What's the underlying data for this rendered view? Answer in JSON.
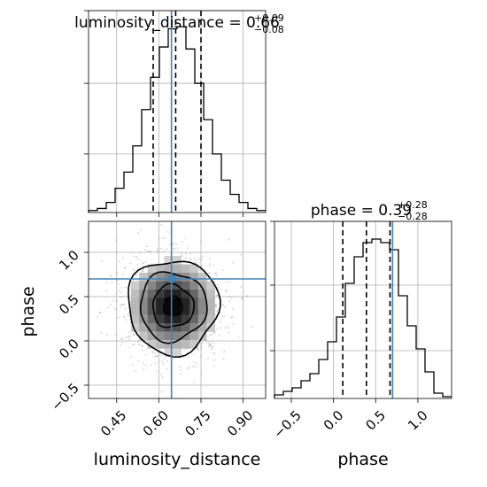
{
  "chart_data": {
    "type": "corner",
    "parameters": [
      "luminosity_distance",
      "phase"
    ],
    "truth_color": "#4682b4",
    "truths": {
      "luminosity_distance": 0.645,
      "phase": 0.7
    },
    "panels": [
      {
        "id": "lum-hist",
        "type": "histogram",
        "title_name": "luminosity_distance",
        "title_value": "0.66",
        "title_plus": "+0.09",
        "title_minus": "−0.08",
        "xlim": [
          0.35,
          0.98
        ],
        "ylim": [
          0,
          1
        ],
        "x_ticks": [
          0.45,
          0.6,
          0.75,
          0.9
        ],
        "y_ticks": [
          0.29,
          0.64,
          1.0
        ],
        "quantiles": [
          0.58,
          0.66,
          0.75
        ],
        "truth": 0.645,
        "bin_edges": [
          0.35,
          0.3815,
          0.413,
          0.4445,
          0.476,
          0.5075,
          0.539,
          0.5705,
          0.602,
          0.6335,
          0.665,
          0.6965,
          0.728,
          0.7595,
          0.791,
          0.8225,
          0.854,
          0.8855,
          0.917,
          0.9485,
          0.98
        ],
        "counts": [
          0.01,
          0.02,
          0.05,
          0.12,
          0.2,
          0.33,
          0.51,
          0.67,
          0.82,
          0.91,
          0.92,
          0.81,
          0.64,
          0.46,
          0.29,
          0.16,
          0.09,
          0.05,
          0.02,
          0.01
        ]
      },
      {
        "id": "phase-hist",
        "type": "histogram",
        "title_name": "phase",
        "title_value": "0.39",
        "title_plus": "+0.28",
        "title_minus": "−0.28",
        "xlim": [
          -0.7,
          1.4
        ],
        "ylim": [
          0,
          1
        ],
        "x_ticks": [
          -0.5,
          0.0,
          0.5,
          1.0
        ],
        "x_tick_labels": [
          "−0.5",
          "0.0",
          "0.5",
          "1.0"
        ],
        "y_ticks": [
          0.27,
          0.64,
          1.0
        ],
        "quantiles": [
          0.11,
          0.39,
          0.67
        ],
        "truth": 0.7,
        "bin_edges": [
          -0.7,
          -0.595,
          -0.49,
          -0.385,
          -0.28,
          -0.175,
          -0.07,
          0.035,
          0.14,
          0.245,
          0.35,
          0.455,
          0.56,
          0.665,
          0.77,
          0.875,
          0.98,
          1.085,
          1.19,
          1.295,
          1.4
        ],
        "counts": [
          0.02,
          0.04,
          0.06,
          0.1,
          0.14,
          0.22,
          0.32,
          0.46,
          0.65,
          0.8,
          0.88,
          0.9,
          0.88,
          0.84,
          0.58,
          0.41,
          0.28,
          0.15,
          0.03,
          0.01
        ]
      },
      {
        "id": "joint",
        "type": "2d-density",
        "xlim": [
          0.35,
          0.98
        ],
        "ylim": [
          -0.65,
          1.35
        ],
        "x_ticks": [
          0.45,
          0.6,
          0.75,
          0.9
        ],
        "x_tick_labels": [
          "0.45",
          "0.60",
          "0.75",
          "0.90"
        ],
        "y_ticks": [
          -0.5,
          0.0,
          0.5,
          1.0
        ],
        "y_tick_labels": [
          "−0.5",
          "0.0",
          "0.5",
          "1.0"
        ],
        "xlabel": "luminosity_distance",
        "ylabel": "phase",
        "center": [
          0.65,
          0.39
        ],
        "spread": [
          0.085,
          0.28
        ],
        "contour_levels": [
          0.39,
          0.86,
          1.39,
          1.9
        ],
        "truth": [
          0.645,
          0.7
        ]
      }
    ],
    "bottom_right_xlabel": "phase"
  }
}
